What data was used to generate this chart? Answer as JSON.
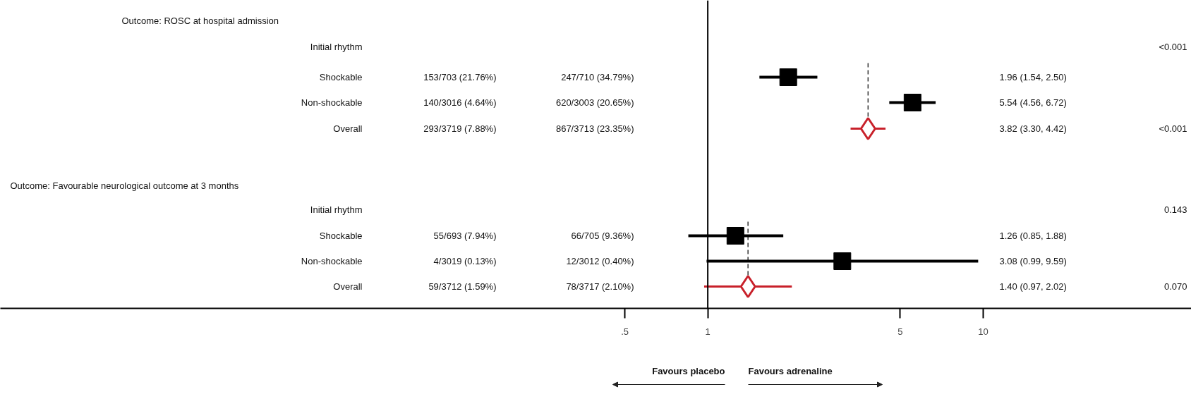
{
  "chart_data": {
    "type": "scatter",
    "categories": [
      "Initial rhythm",
      "Shockable",
      "Non-shockable",
      "Overall",
      "Initial rhythm",
      "Shockable",
      "Non-shockable",
      "Overall"
    ],
    "series": [
      {
        "color": "#000000",
        "marker": "square",
        "values": [
          null,
          1.96,
          5.54,
          null,
          null,
          1.26,
          3.08,
          null
        ],
        "errors": [
          null,
          [
            1.54,
            2.5
          ],
          [
            4.56,
            6.72
          ],
          null,
          null,
          [
            0.85,
            1.88
          ],
          [
            0.99,
            9.59
          ],
          null
        ]
      },
      {
        "color": "#c8202a",
        "marker": "diamond",
        "values": [
          null,
          null,
          null,
          3.82,
          null,
          null,
          null,
          1.4
        ],
        "errors": [
          null,
          null,
          null,
          [
            3.3,
            4.42
          ],
          null,
          null,
          null,
          [
            0.97,
            2.02
          ]
        ]
      }
    ],
    "orientation": "horizontal",
    "log": "x",
    "xlim": [
      0.0027,
      57
    ],
    "xticks": [
      {
        "value": 0.5,
        "label": ".5"
      },
      1,
      5,
      10
    ],
    "ref_lines": [
      {
        "axis": "x",
        "value": 1,
        "color": "#000000"
      },
      {
        "axis": "x",
        "value": 3.82,
        "color": "#333333",
        "line_style": "dashed"
      },
      {
        "axis": "x",
        "value": 1.4,
        "color": "#333333",
        "line_style": "dashed"
      }
    ],
    "annotations": [
      "Outcome: ROSC at hospital admission",
      "153/703 (21.76%)",
      "140/3016 (4.64%)",
      "293/3719 (7.88%)",
      "247/710 (34.79%)",
      "620/3003 (20.65%)",
      "867/3713 (23.35%)",
      "<0.001",
      "<0.001",
      "Outcome: Favourable neurological outcome at 3 months",
      "55/693 (7.94%)",
      "4/3019 (0.13%)",
      "59/3712 (1.59%)",
      "66/705 (9.36%)",
      "12/3012 (0.40%)",
      "78/3717 (2.10%)",
      "0.143",
      "0.070",
      "Favours placebo",
      "Favours adrenaline",
      "1.96 (1.54, 2.50)",
      "5.54 (4.56, 6.72)",
      "3.82 (3.30, 4.42)",
      "1.26 (0.85, 1.88)",
      "3.08 (0.99, 9.59)",
      "1.40 (0.97, 2.02)"
    ]
  }
}
